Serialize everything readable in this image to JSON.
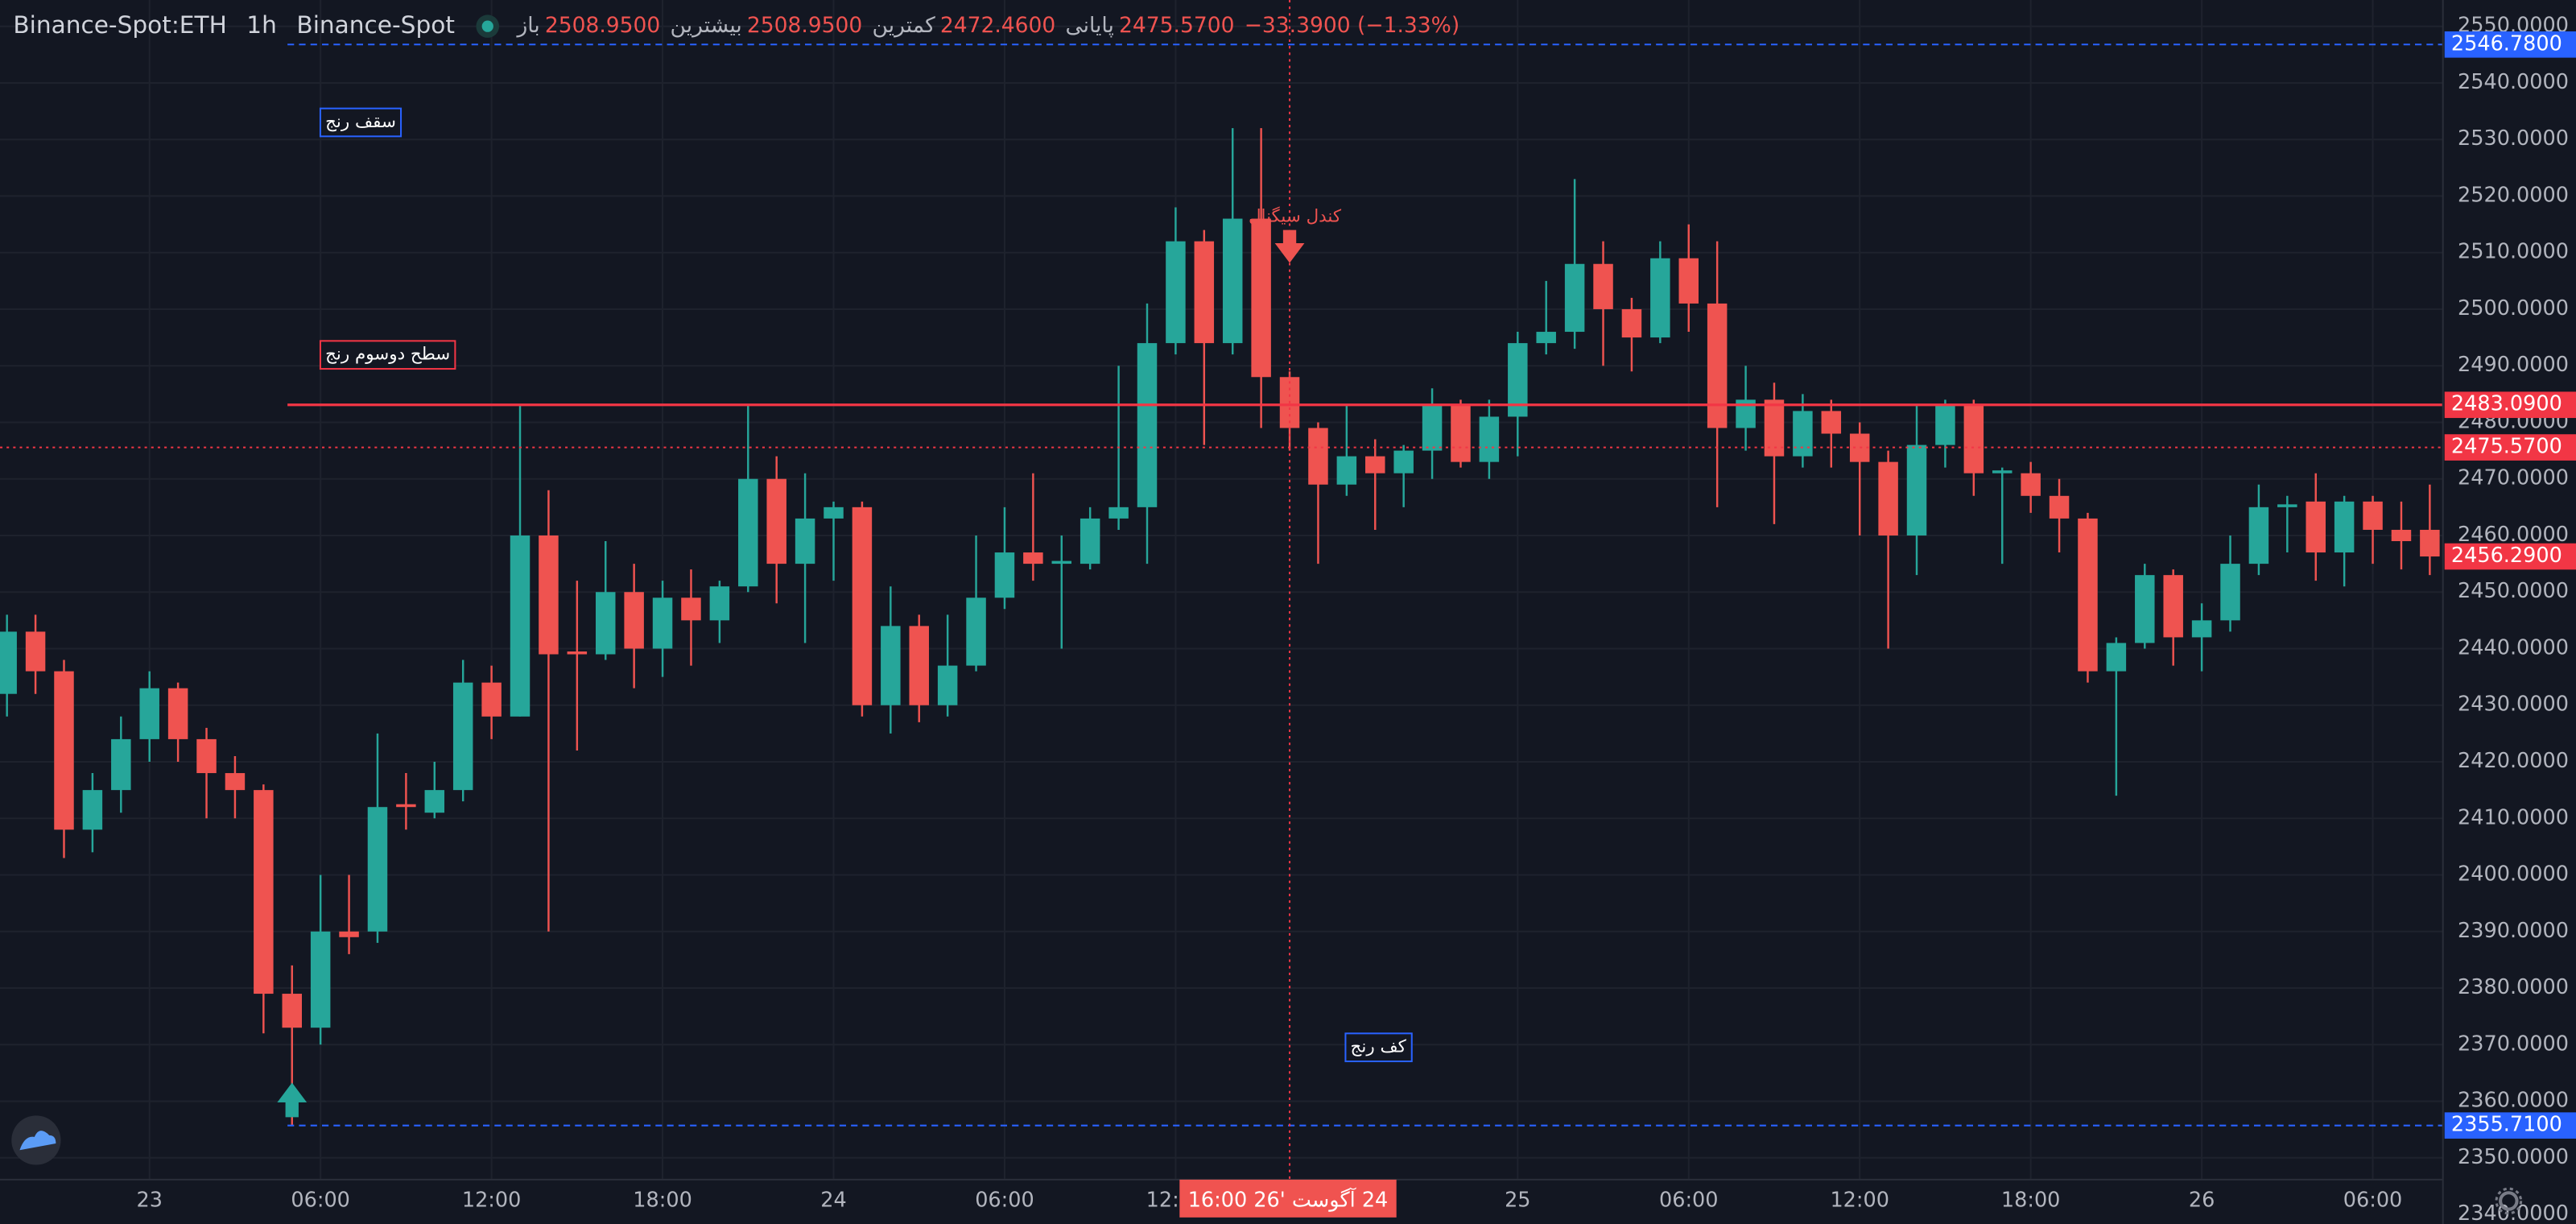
{
  "chart_data": {
    "type": "candlestick",
    "header": {
      "symbol": "Binance-Spot:ETH",
      "interval": "1h",
      "exchange": "Binance-Spot",
      "fields": [
        {
          "name": "باز",
          "value": "2508.9500"
        },
        {
          "name": "بیشترین",
          "value": "2508.9500"
        },
        {
          "name": "کمترین",
          "value": "2472.4600"
        },
        {
          "name": "پایانی",
          "value": "2475.5700"
        }
      ],
      "change": "−33.3900 (−1.33%)"
    },
    "categories": [
      null,
      null,
      null,
      null,
      null,
      "23",
      null,
      null,
      null,
      null,
      null,
      "06:00",
      null,
      null,
      null,
      null,
      null,
      "12:00",
      null,
      null,
      null,
      null,
      null,
      "18:00",
      null,
      null,
      null,
      null,
      null,
      "24",
      null,
      null,
      null,
      null,
      null,
      "06:00",
      null,
      null,
      null,
      null,
      null,
      "12:00",
      null,
      null,
      null,
      null,
      null,
      null,
      null,
      null,
      null,
      null,
      null,
      "25",
      null,
      null,
      null,
      null,
      null,
      "06:00",
      null,
      null,
      null,
      null,
      null,
      "12:00",
      null,
      null,
      null,
      null,
      null,
      "18:00",
      null,
      null,
      null,
      null,
      null,
      "26",
      null,
      null,
      null,
      null,
      null,
      "06:00",
      null,
      null
    ],
    "open": [
      2432,
      2443,
      2436,
      2408,
      2415,
      2424,
      2433,
      2424,
      2418,
      2415,
      2379,
      2373,
      2390,
      2390,
      2412.5,
      2411,
      2415,
      2434,
      2428,
      2460,
      2439.5,
      2439,
      2450,
      2440,
      2449,
      2445,
      2451,
      2470,
      2455,
      2463,
      2465,
      2430,
      2444,
      2430,
      2437,
      2449,
      2457,
      2455,
      2455,
      2463,
      2465,
      2494,
      2512,
      2494,
      2516,
      2488,
      2479,
      2469,
      2474,
      2471,
      2475,
      2483,
      2473,
      2481,
      2494,
      2496,
      2508,
      2500,
      2495,
      2509,
      2501,
      2479,
      2484,
      2474,
      2482,
      2478,
      2473,
      2460,
      2476,
      2483,
      2471,
      2471,
      2467,
      2463,
      2436,
      2441,
      2453,
      2442,
      2445,
      2455,
      2465,
      2466,
      2457,
      2466,
      2461,
      2461
    ],
    "high": [
      2446,
      2446,
      2438,
      2418,
      2428,
      2436,
      2434,
      2426,
      2421,
      2416,
      2384,
      2400,
      2400,
      2425,
      2418,
      2420,
      2438,
      2437,
      2483,
      2468,
      2452,
      2459,
      2455,
      2452,
      2454,
      2452,
      2483,
      2474,
      2471,
      2466,
      2466,
      2451,
      2446,
      2446,
      2460,
      2465,
      2471,
      2460,
      2465,
      2490,
      2501,
      2518,
      2514,
      2532,
      2532,
      2489,
      2480,
      2483,
      2477,
      2476,
      2486,
      2484,
      2484,
      2496,
      2505,
      2523,
      2512,
      2502,
      2512,
      2515,
      2512,
      2490,
      2487,
      2485,
      2484,
      2480,
      2475,
      2483,
      2484,
      2484,
      2472,
      2473,
      2470,
      2464,
      2442,
      2455,
      2454,
      2448,
      2460,
      2469,
      2467,
      2471,
      2467,
      2467,
      2466,
      2469
    ],
    "low": [
      2428,
      2432,
      2403,
      2404,
      2411,
      2420,
      2420,
      2410,
      2410,
      2372,
      2355.71,
      2370,
      2386,
      2388,
      2408,
      2410,
      2413,
      2424,
      2428,
      2390,
      2422,
      2438,
      2433,
      2435,
      2437,
      2441,
      2450,
      2448,
      2441,
      2452,
      2428,
      2425,
      2427,
      2428,
      2436,
      2447,
      2452,
      2440,
      2454,
      2461,
      2455,
      2492,
      2476,
      2492,
      2479,
      2475,
      2455,
      2467,
      2461,
      2465,
      2470,
      2472,
      2470,
      2474,
      2492,
      2493,
      2490,
      2489,
      2494,
      2496,
      2465,
      2475,
      2462,
      2472,
      2472,
      2460,
      2440,
      2453,
      2472,
      2467,
      2455,
      2464,
      2457,
      2434,
      2414,
      2440,
      2437,
      2436,
      2443,
      2453,
      2457,
      2452,
      2451,
      2455,
      2454,
      2453
    ],
    "close": [
      2443,
      2436,
      2408,
      2415,
      2424,
      2433,
      2424,
      2418,
      2415,
      2379,
      2373,
      2390,
      2389,
      2412,
      2412,
      2415,
      2434,
      2428,
      2460,
      2439,
      2439,
      2450,
      2440,
      2449,
      2445,
      2451,
      2470,
      2455,
      2463,
      2465,
      2430,
      2444,
      2430,
      2437,
      2449,
      2457,
      2455,
      2455.5,
      2463,
      2465,
      2494,
      2512,
      2494,
      2516,
      2488,
      2479,
      2469,
      2474,
      2471,
      2475,
      2483,
      2473,
      2481,
      2494,
      2496,
      2508,
      2500,
      2495,
      2509,
      2501,
      2479,
      2484,
      2474,
      2482,
      2478,
      2473,
      2460,
      2476,
      2483,
      2471,
      2471.5,
      2467,
      2463,
      2436,
      2441,
      2453,
      2442,
      2445,
      2455,
      2465,
      2465.5,
      2457,
      2466,
      2461,
      2459,
      2456.29
    ],
    "up_color": "#26a69a",
    "down_color": "#ef5350",
    "ylim": [
      2338.3,
      2554.65
    ],
    "yticks": [
      {
        "value": 2340,
        "label": "2340.0000"
      },
      {
        "value": 2350,
        "label": "2350.0000"
      },
      {
        "value": 2360,
        "label": "2360.0000"
      },
      {
        "value": 2370,
        "label": "2370.0000"
      },
      {
        "value": 2380,
        "label": "2380.0000"
      },
      {
        "value": 2390,
        "label": "2390.0000"
      },
      {
        "value": 2400,
        "label": "2400.0000"
      },
      {
        "value": 2410,
        "label": "2410.0000"
      },
      {
        "value": 2420,
        "label": "2420.0000"
      },
      {
        "value": 2430,
        "label": "2430.0000"
      },
      {
        "value": 2440,
        "label": "2440.0000"
      },
      {
        "value": 2450,
        "label": "2450.0000"
      },
      {
        "value": 2460,
        "label": "2460.0000"
      },
      {
        "value": 2470,
        "label": "2470.0000"
      },
      {
        "value": 2480,
        "label": "2480.0000"
      },
      {
        "value": 2490,
        "label": "2490.0000"
      },
      {
        "value": 2500,
        "label": "2500.0000"
      },
      {
        "value": 2510,
        "label": "2510.0000"
      },
      {
        "value": 2520,
        "label": "2520.0000"
      },
      {
        "value": 2530,
        "label": "2530.0000"
      },
      {
        "value": 2540,
        "label": "2540.0000"
      },
      {
        "value": 2550,
        "label": "2550.0000"
      }
    ],
    "grid": true,
    "price_lines": [
      {
        "value": 2546.78,
        "label": "2546.7800",
        "color": "#2962ff",
        "style": "dashed"
      },
      {
        "value": 2483.09,
        "label": "2483.0900",
        "color": "#f23645",
        "style": "solid"
      },
      {
        "value": 2475.57,
        "label": "2475.5700",
        "color": "#f23645",
        "style": "dotted"
      },
      {
        "value": 2456.29,
        "label": "2456.2900",
        "color": "#f23645",
        "style": "none"
      },
      {
        "value": 2355.71,
        "label": "2355.7100",
        "color": "#2962ff",
        "style": "dashed"
      }
    ],
    "crosshair_label": "24 آگوست '26  16:00",
    "annotations": [
      "سقف رنج",
      "سطح دوسوم رنج",
      "کف رنج",
      "کندل سیگنال"
    ]
  }
}
